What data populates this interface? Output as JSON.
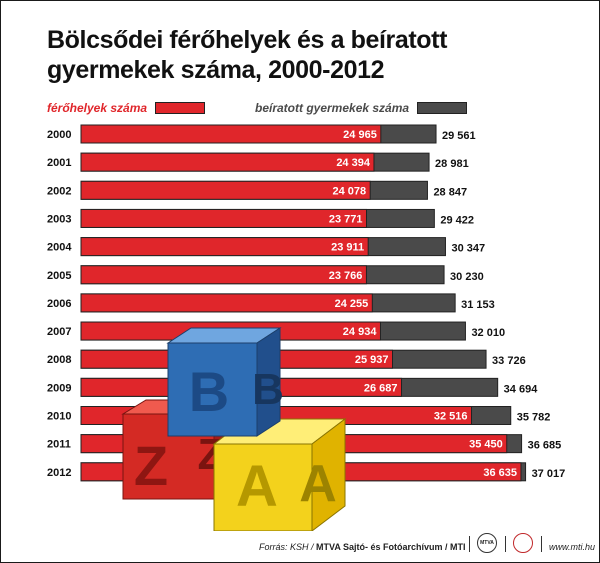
{
  "chart_data": {
    "type": "bar",
    "orientation": "horizontal",
    "title": "Bölcsődei férőhelyek és a beíratott gyermekek száma, 2000-2012",
    "title_lines": [
      "Bölcsődei férőhelyek és a beíratott",
      "gyermekek száma, 2000-2012"
    ],
    "categories": [
      "2000",
      "2001",
      "2002",
      "2003",
      "2004",
      "2005",
      "2006",
      "2007",
      "2008",
      "2009",
      "2010",
      "2011",
      "2012"
    ],
    "series": [
      {
        "name": "férőhelyek száma",
        "color": "#e0262b",
        "values": [
          24965,
          24394,
          24078,
          23771,
          23911,
          23766,
          24255,
          24934,
          25937,
          26687,
          32516,
          35450,
          36635
        ],
        "labels": [
          "24 965",
          "24 394",
          "24 078",
          "23 771",
          "23 911",
          "23 766",
          "24 255",
          "24 934",
          "25 937",
          "26 687",
          "32 516",
          "35 450",
          "36 635"
        ]
      },
      {
        "name": "beíratott gyermekek száma",
        "color": "#4a4a4a",
        "values": [
          29561,
          28981,
          28847,
          29422,
          30347,
          30230,
          31153,
          32010,
          33726,
          34694,
          35782,
          36685,
          37017
        ],
        "labels": [
          "29 561",
          "28 981",
          "28 847",
          "29 422",
          "30 347",
          "30 230",
          "31 153",
          "32 010",
          "33 726",
          "34 694",
          "35 782",
          "36 685",
          "37 017"
        ]
      }
    ],
    "legend_position": "top",
    "grid": false
  },
  "illustration": {
    "blocks": [
      {
        "letter": "B",
        "color": "#2e6db4"
      },
      {
        "letter": "Z",
        "color": "#d42a24"
      },
      {
        "letter": "A",
        "color": "#f3d21c"
      }
    ]
  },
  "footer": {
    "source_prefix": "Forrás: KSH /",
    "source_org": "MTVA Sajtó- és Fotóarchívum / MTI",
    "seal_text": "MTVA",
    "website": "www.mti.hu"
  }
}
